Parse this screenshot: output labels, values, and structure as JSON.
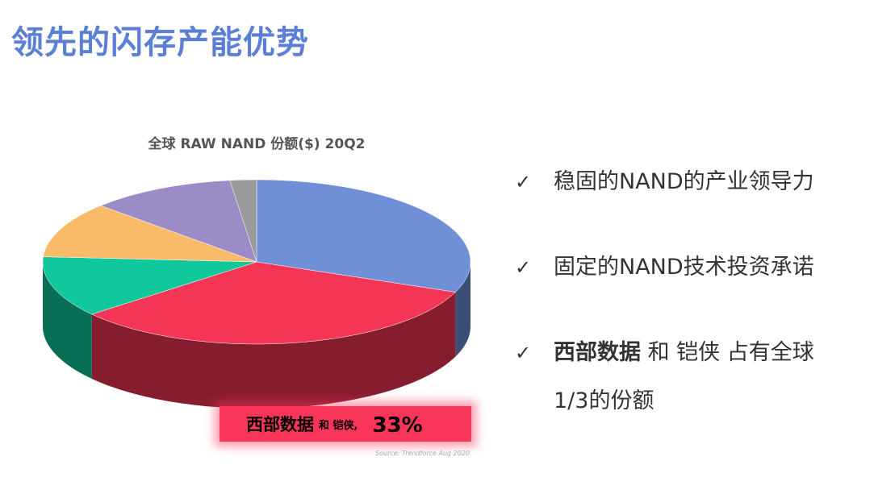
{
  "title": "领先的闪存产能优势",
  "chart_data": {
    "type": "pie3d",
    "title": "全球 RAW NAND 份额($) 20Q2",
    "values": [
      31,
      33,
      12,
      11,
      11,
      2
    ],
    "value_labels": [
      null,
      "33%",
      null,
      null,
      null,
      null
    ],
    "colors": [
      "#6f8fd6",
      "#f43556",
      "#10c89c",
      "#f9bb6a",
      "#9b8cc8",
      "#9a9a9a"
    ],
    "callout": {
      "strong": "西部数据",
      "text": "和 铠侠,"
    },
    "source": "Source: Trendforce Aug 2020"
  },
  "bullets": [
    {
      "text": "稳固的NAND的产业领导力"
    },
    {
      "text": "固定的NAND技术投资承诺"
    },
    {
      "strong": "西部数据",
      "text": "和 铠侠 占有全球 1/3的份额"
    }
  ]
}
